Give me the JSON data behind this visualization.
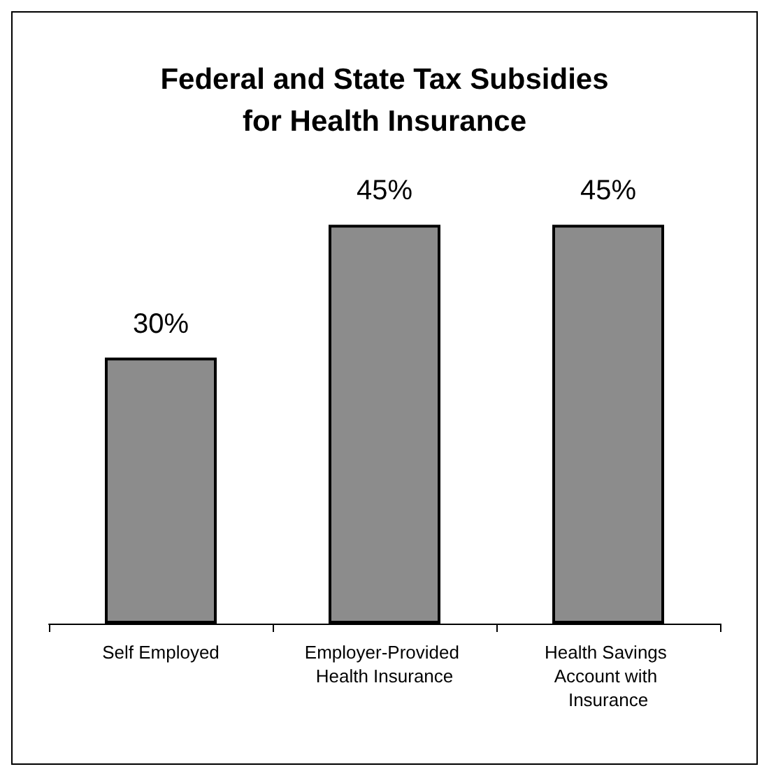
{
  "chart_data": {
    "type": "bar",
    "title": "Federal and State Tax Subsidies\nfor Health Insurance",
    "categories": [
      "Self Employed",
      "Employer-Provided Health Insurance",
      "Health Savings Account with Insurance"
    ],
    "values": [
      30,
      45,
      45
    ],
    "color": "#8c8c8c",
    "value_labels": [
      "30%",
      "45%",
      "45%"
    ]
  }
}
